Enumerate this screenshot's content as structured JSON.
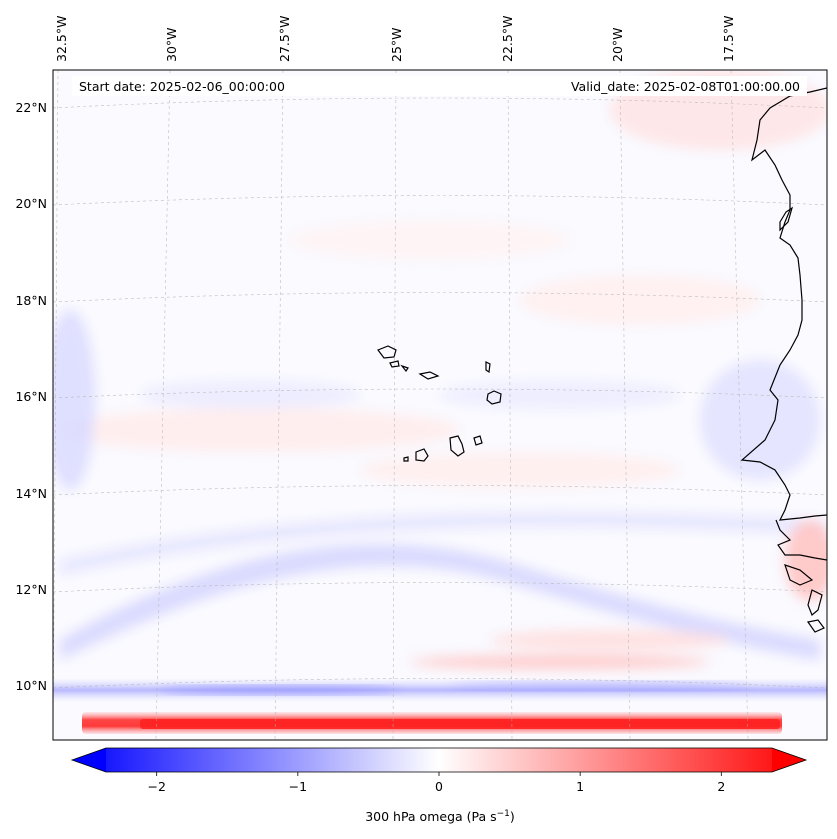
{
  "header": {
    "start_date": "Start date: 2025-02-06_00:00:00",
    "valid_date": "Valid_date: 2025-02-08T01:00:00.00"
  },
  "axes": {
    "lon_labels": [
      "32.5°W",
      "30°W",
      "27.5°W",
      "25°W",
      "22.5°W",
      "20°W",
      "17.5°W"
    ],
    "lat_labels": [
      "22°N",
      "20°N",
      "18°N",
      "16°N",
      "14°N",
      "12°N",
      "10°N"
    ]
  },
  "colorbar": {
    "label_main": "300 hPa omega (Pa s",
    "label_exp": "−1",
    "label_close": ")",
    "tick_labels": [
      "−2",
      "−1",
      "0",
      "1",
      "2"
    ],
    "tick_values": [
      -2,
      -1,
      0,
      1,
      2
    ],
    "range": [
      -2.6,
      2.6
    ],
    "cmap": "bwr",
    "extend": "both",
    "colors": {
      "min": "#0000ff",
      "mid": "#ffffff",
      "max": "#ff0000"
    }
  },
  "chart_data": {
    "type": "heatmap",
    "title": "",
    "variable": "300 hPa omega",
    "units": "Pa s^-1",
    "projection": "lambert-conformal",
    "lon_range": [
      -33,
      -15.5
    ],
    "lat_range": [
      9,
      23
    ],
    "vmin": -2.6,
    "vmax": 2.6,
    "features": [
      "Cape Verde islands",
      "West African coastline (Senegal, Gambia, Guinea-Bissau)"
    ],
    "notable_bands": [
      {
        "lat": 9.2,
        "omega": 2.2,
        "description": "strong ascent/descent band along southern edge (red)"
      },
      {
        "lat": 9.8,
        "omega": -0.9,
        "description": "blue band just north of red band"
      },
      {
        "lat": 12.3,
        "omega": -0.3,
        "description": "weak diagonal negative band"
      }
    ]
  }
}
